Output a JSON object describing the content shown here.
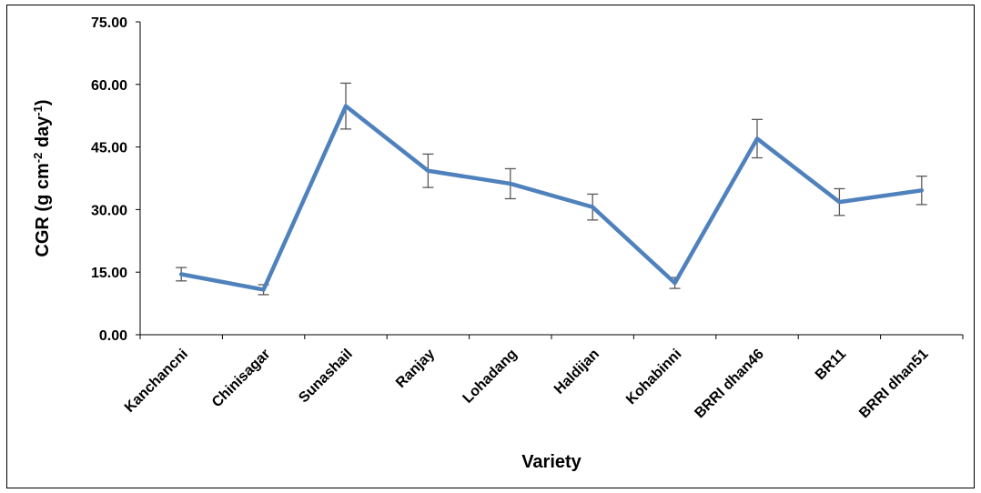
{
  "chart_data": {
    "type": "line",
    "title": "",
    "xlabel": "Variety",
    "ylabel": {
      "main": "CGR (g cm",
      "sup1": "-2",
      "mid": " day",
      "sup2": "-1",
      "end": ")"
    },
    "ylim": [
      0,
      75
    ],
    "yticks": [
      "0.00",
      "15.00",
      "30.00",
      "45.00",
      "60.00",
      "75.00"
    ],
    "categories": [
      "Kanchancni",
      "Chinisagar",
      "Sunashail",
      "Ranjay",
      "Lohadang",
      "Haldijan",
      "Kohabinni",
      "BRRI dhan46",
      "BR11",
      "BRRI dhan51"
    ],
    "series": [
      {
        "values": [
          14.5,
          10.8,
          54.8,
          39.3,
          36.2,
          30.6,
          12.4,
          47.0,
          31.8,
          34.6
        ],
        "errors": [
          1.6,
          1.2,
          5.5,
          4.0,
          3.6,
          3.1,
          1.3,
          4.6,
          3.2,
          3.4
        ],
        "color": "#4F81BD"
      }
    ],
    "grid": false,
    "legend": "none",
    "error_bar_color": "#595959"
  }
}
